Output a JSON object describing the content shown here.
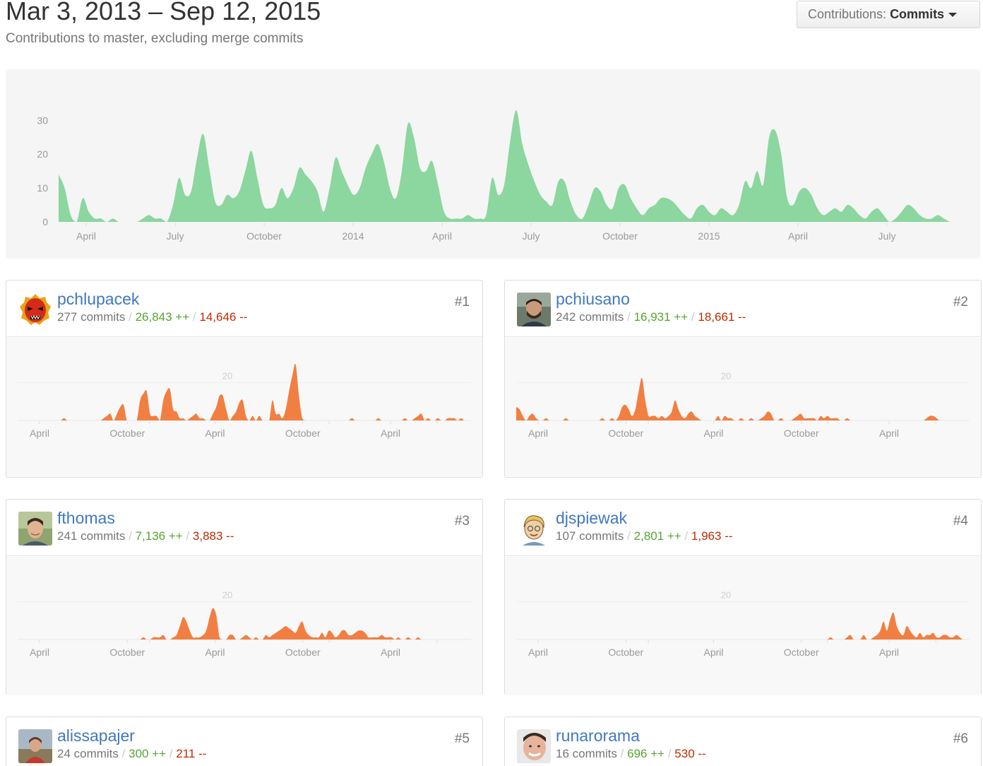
{
  "header": {
    "date_range": "Mar 3, 2013 – Sep 12, 2015",
    "subtitle": "Contributions to master, excluding merge commits"
  },
  "contributions_select": {
    "label": "Contributions:",
    "value": "Commits"
  },
  "colors": {
    "main_area": "#8cd6a0",
    "contributor_area": "#f17f42",
    "username": "#4078c0",
    "additions": "#55a532",
    "deletions": "#bd2c00"
  },
  "chart_data": [
    {
      "type": "area",
      "title": "",
      "xlabel": "",
      "ylabel": "",
      "x_ticks": [
        "April",
        "July",
        "October",
        "2014",
        "April",
        "July",
        "October",
        "2015",
        "April",
        "July"
      ],
      "y_ticks": [
        "0",
        "10",
        "20",
        "30"
      ],
      "ylim": [
        0,
        33
      ],
      "grid": false,
      "series": [
        {
          "values": [
            14,
            10,
            2,
            0,
            7,
            3,
            1,
            1,
            0,
            1,
            0,
            0,
            0,
            0,
            1,
            2,
            1,
            1,
            0,
            5,
            13,
            8,
            9,
            19,
            26,
            16,
            6,
            5,
            8,
            7,
            9,
            15,
            21,
            13,
            5,
            4,
            5,
            10,
            7,
            10,
            16,
            14,
            12,
            9,
            3,
            10,
            19,
            15,
            11,
            8,
            10,
            16,
            20,
            23,
            18,
            10,
            7,
            15,
            29,
            25,
            16,
            15,
            18,
            11,
            3,
            1,
            1,
            1,
            2,
            1,
            1,
            2,
            13,
            8,
            11,
            24,
            33,
            23,
            17,
            12,
            8,
            6,
            5,
            12,
            12,
            6,
            2,
            1,
            5,
            10,
            9,
            5,
            4,
            10,
            11,
            7,
            4,
            2,
            4,
            5,
            7,
            7,
            6,
            4,
            2,
            1,
            4,
            5,
            3,
            2,
            4,
            3,
            2,
            5,
            12,
            10,
            15,
            11,
            25,
            27,
            20,
            7,
            5,
            9,
            10,
            8,
            4,
            2,
            3,
            4,
            3,
            5,
            4,
            2,
            1,
            3,
            4,
            2,
            0,
            1,
            3,
            5,
            4,
            2,
            1,
            1,
            2,
            1,
            0
          ]
        }
      ]
    },
    {
      "type": "area",
      "contributor": "pchlupacek",
      "x_ticks": [
        "April",
        "October",
        "April",
        "October",
        "April"
      ],
      "y_ticks": [
        "20"
      ],
      "ylim": [
        0,
        30
      ],
      "series": [
        {
          "values": [
            0,
            0,
            0,
            0,
            0,
            0,
            0,
            0,
            0,
            0,
            0,
            0,
            0,
            0,
            1,
            0,
            0,
            0,
            0,
            0,
            0,
            0,
            0,
            0,
            0,
            0,
            1,
            2,
            3,
            0,
            3,
            6,
            7,
            0,
            0,
            0,
            0,
            9,
            12,
            13,
            3,
            2,
            2,
            0,
            9,
            13,
            14,
            5,
            4,
            1,
            1,
            0,
            1,
            2,
            3,
            1,
            1,
            0,
            0,
            3,
            6,
            11,
            11,
            5,
            0,
            2,
            4,
            8,
            9,
            2,
            0,
            2,
            0,
            2,
            0,
            0,
            0,
            9,
            3,
            3,
            1,
            5,
            13,
            20,
            25,
            11,
            1,
            0,
            0,
            0,
            0,
            0,
            0,
            0,
            0,
            0,
            0,
            0,
            0,
            0,
            0,
            1,
            0,
            0,
            0,
            0,
            0,
            0,
            0,
            1,
            0,
            0,
            0,
            0,
            0,
            0,
            0,
            1,
            0,
            0,
            1,
            2,
            3,
            0,
            1,
            0,
            0,
            1,
            0,
            0,
            1,
            1,
            1,
            0,
            1,
            0,
            0,
            0
          ]
        }
      ]
    },
    {
      "type": "area",
      "contributor": "pchiusano",
      "x_ticks": [
        "April",
        "October",
        "April",
        "October",
        "April"
      ],
      "y_ticks": [
        "20"
      ],
      "ylim": [
        0,
        30
      ],
      "series": [
        {
          "values": [
            6,
            5,
            2,
            0,
            2,
            3,
            1,
            0,
            0,
            1,
            0,
            0,
            0,
            0,
            0,
            1,
            0,
            0,
            0,
            0,
            0,
            0,
            0,
            0,
            0,
            0,
            1,
            0,
            0,
            1,
            0,
            2,
            6,
            7,
            5,
            2,
            5,
            13,
            19,
            9,
            2,
            2,
            2,
            1,
            2,
            1,
            2,
            4,
            9,
            5,
            2,
            1,
            3,
            4,
            2,
            1,
            0,
            0,
            0,
            0,
            0,
            2,
            0,
            2,
            1,
            1,
            0,
            0,
            1,
            0,
            0,
            1,
            0,
            0,
            1,
            2,
            4,
            3,
            0,
            0,
            1,
            0,
            0,
            0,
            1,
            2,
            3,
            1,
            1,
            1,
            1,
            0,
            2,
            1,
            2,
            1,
            1,
            1,
            0,
            0,
            1,
            0,
            0,
            0,
            0,
            0,
            0,
            0,
            0,
            0,
            0,
            0,
            0,
            0,
            0,
            0,
            0,
            0,
            0,
            0,
            0,
            0,
            0,
            0,
            1,
            2,
            2,
            1,
            0,
            0,
            0,
            0,
            0,
            0,
            0,
            0,
            0,
            0
          ]
        }
      ]
    },
    {
      "type": "area",
      "contributor": "fthomas",
      "x_ticks": [
        "April",
        "October",
        "April",
        "October",
        "April"
      ],
      "y_ticks": [
        "20"
      ],
      "ylim": [
        0,
        30
      ],
      "series": [
        {
          "values": [
            0,
            0,
            0,
            0,
            0,
            0,
            0,
            0,
            0,
            0,
            0,
            0,
            0,
            0,
            0,
            0,
            0,
            0,
            0,
            0,
            0,
            0,
            0,
            0,
            0,
            0,
            0,
            0,
            0,
            0,
            0,
            0,
            0,
            0,
            0,
            0,
            0,
            0,
            1,
            0,
            0,
            1,
            1,
            1,
            2,
            0,
            0,
            1,
            2,
            6,
            10,
            8,
            4,
            1,
            1,
            1,
            2,
            4,
            10,
            14,
            11,
            1,
            0,
            0,
            2,
            2,
            0,
            0,
            1,
            2,
            1,
            0,
            1,
            0,
            0,
            2,
            1,
            2,
            3,
            4,
            5,
            6,
            5,
            4,
            3,
            6,
            8,
            4,
            2,
            1,
            1,
            1,
            3,
            1,
            4,
            3,
            1,
            2,
            4,
            4,
            2,
            2,
            3,
            4,
            4,
            3,
            1,
            1,
            1,
            1,
            2,
            1,
            1,
            1,
            0,
            1,
            0,
            0,
            1,
            0,
            0,
            1,
            0,
            0,
            0,
            0,
            0,
            0,
            0,
            0,
            0,
            0,
            0,
            0,
            0,
            0,
            0,
            0
          ]
        }
      ]
    },
    {
      "type": "area",
      "contributor": "djspiewak",
      "x_ticks": [
        "April",
        "October",
        "April",
        "October",
        "April"
      ],
      "y_ticks": [
        "20"
      ],
      "ylim": [
        0,
        30
      ],
      "series": [
        {
          "values": [
            0,
            0,
            0,
            0,
            0,
            0,
            0,
            0,
            0,
            0,
            0,
            0,
            0,
            0,
            0,
            0,
            0,
            0,
            0,
            0,
            0,
            0,
            0,
            0,
            0,
            0,
            0,
            0,
            0,
            0,
            0,
            0,
            0,
            0,
            0,
            0,
            0,
            0,
            0,
            0,
            0,
            0,
            0,
            0,
            0,
            0,
            0,
            0,
            0,
            0,
            0,
            0,
            0,
            0,
            0,
            0,
            0,
            0,
            0,
            0,
            0,
            0,
            0,
            0,
            0,
            0,
            0,
            0,
            0,
            0,
            0,
            0,
            0,
            0,
            0,
            0,
            0,
            0,
            0,
            0,
            0,
            0,
            0,
            0,
            0,
            0,
            0,
            0,
            0,
            0,
            0,
            0,
            0,
            0,
            0,
            1,
            0,
            0,
            0,
            0,
            1,
            2,
            0,
            0,
            0,
            2,
            0,
            0,
            1,
            2,
            4,
            8,
            4,
            9,
            12,
            6,
            3,
            2,
            6,
            4,
            2,
            1,
            3,
            1,
            2,
            2,
            3,
            1,
            1,
            2,
            2,
            1,
            1,
            2,
            1,
            0,
            0,
            0
          ]
        }
      ]
    }
  ],
  "contributors": [
    {
      "username": "pchlupacek",
      "rank": "#1",
      "commits": "277 commits",
      "additions": "26,843 ++",
      "deletions": "14,646 --"
    },
    {
      "username": "pchiusano",
      "rank": "#2",
      "commits": "242 commits",
      "additions": "16,931 ++",
      "deletions": "18,661 --"
    },
    {
      "username": "fthomas",
      "rank": "#3",
      "commits": "241 commits",
      "additions": "7,136 ++",
      "deletions": "3,883 --"
    },
    {
      "username": "djspiewak",
      "rank": "#4",
      "commits": "107 commits",
      "additions": "2,801 ++",
      "deletions": "1,963 --"
    },
    {
      "username": "alissapajer",
      "rank": "#5",
      "commits": "24 commits",
      "additions": "300 ++",
      "deletions": "211 --"
    },
    {
      "username": "runarorama",
      "rank": "#6",
      "commits": "16 commits",
      "additions": "696 ++",
      "deletions": "530 --"
    }
  ],
  "separator": "/"
}
